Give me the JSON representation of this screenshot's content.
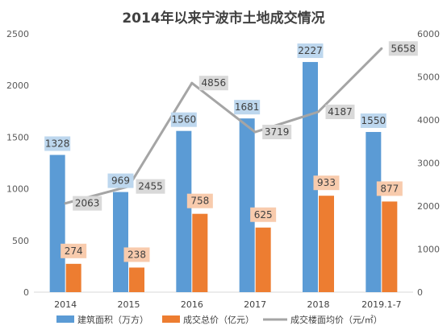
{
  "chart_data": {
    "type": "bar",
    "title": "2014年以来宁波市土地成交情况",
    "categories": [
      "2014",
      "2015",
      "2016",
      "2017",
      "2018",
      "2019.1-7"
    ],
    "series": [
      {
        "name": "建筑面积（万方）",
        "kind": "bar",
        "axis": "left",
        "color": "#5b9bd5",
        "label_bg": "#bdd7ee",
        "values": [
          1328,
          969,
          1560,
          1681,
          2227,
          1550
        ]
      },
      {
        "name": "成交总价（亿元）",
        "kind": "bar",
        "axis": "left",
        "color": "#ed7d31",
        "label_bg": "#f8cbad",
        "values": [
          274,
          238,
          758,
          625,
          933,
          877
        ]
      },
      {
        "name": "成交楼面均价（元/㎡）",
        "kind": "line",
        "axis": "right",
        "color": "#a5a5a5",
        "label_bg": "#d9d9d9",
        "values": [
          2063,
          2455,
          4856,
          3719,
          4187,
          5658
        ]
      }
    ],
    "y_left": {
      "range": [
        0,
        2500
      ],
      "ticks": [
        "0",
        "500",
        "1000",
        "1500",
        "2000",
        "2500"
      ]
    },
    "y_right": {
      "range": [
        0,
        6000
      ],
      "ticks": [
        "0",
        "1000",
        "2000",
        "3000",
        "4000",
        "5000",
        "6000"
      ]
    },
    "grid": false,
    "legend": "bottom"
  }
}
